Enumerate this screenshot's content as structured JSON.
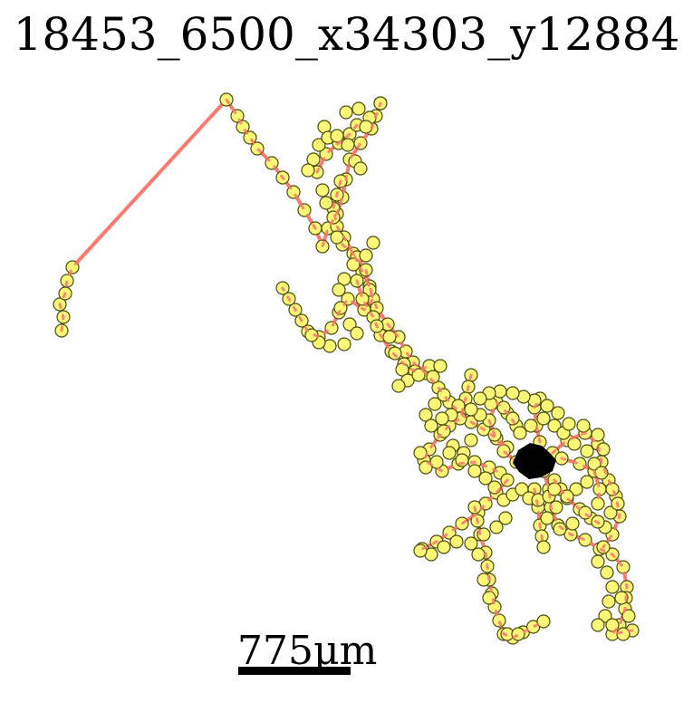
{
  "title": "18453_6500_x34303_y12884",
  "scale_bar": {
    "label": "775μm"
  },
  "colors": {
    "line": "#fa7a6e",
    "node_fill": "#fbf777",
    "node_stroke": "#4c4c10",
    "soma": "#000000"
  }
}
